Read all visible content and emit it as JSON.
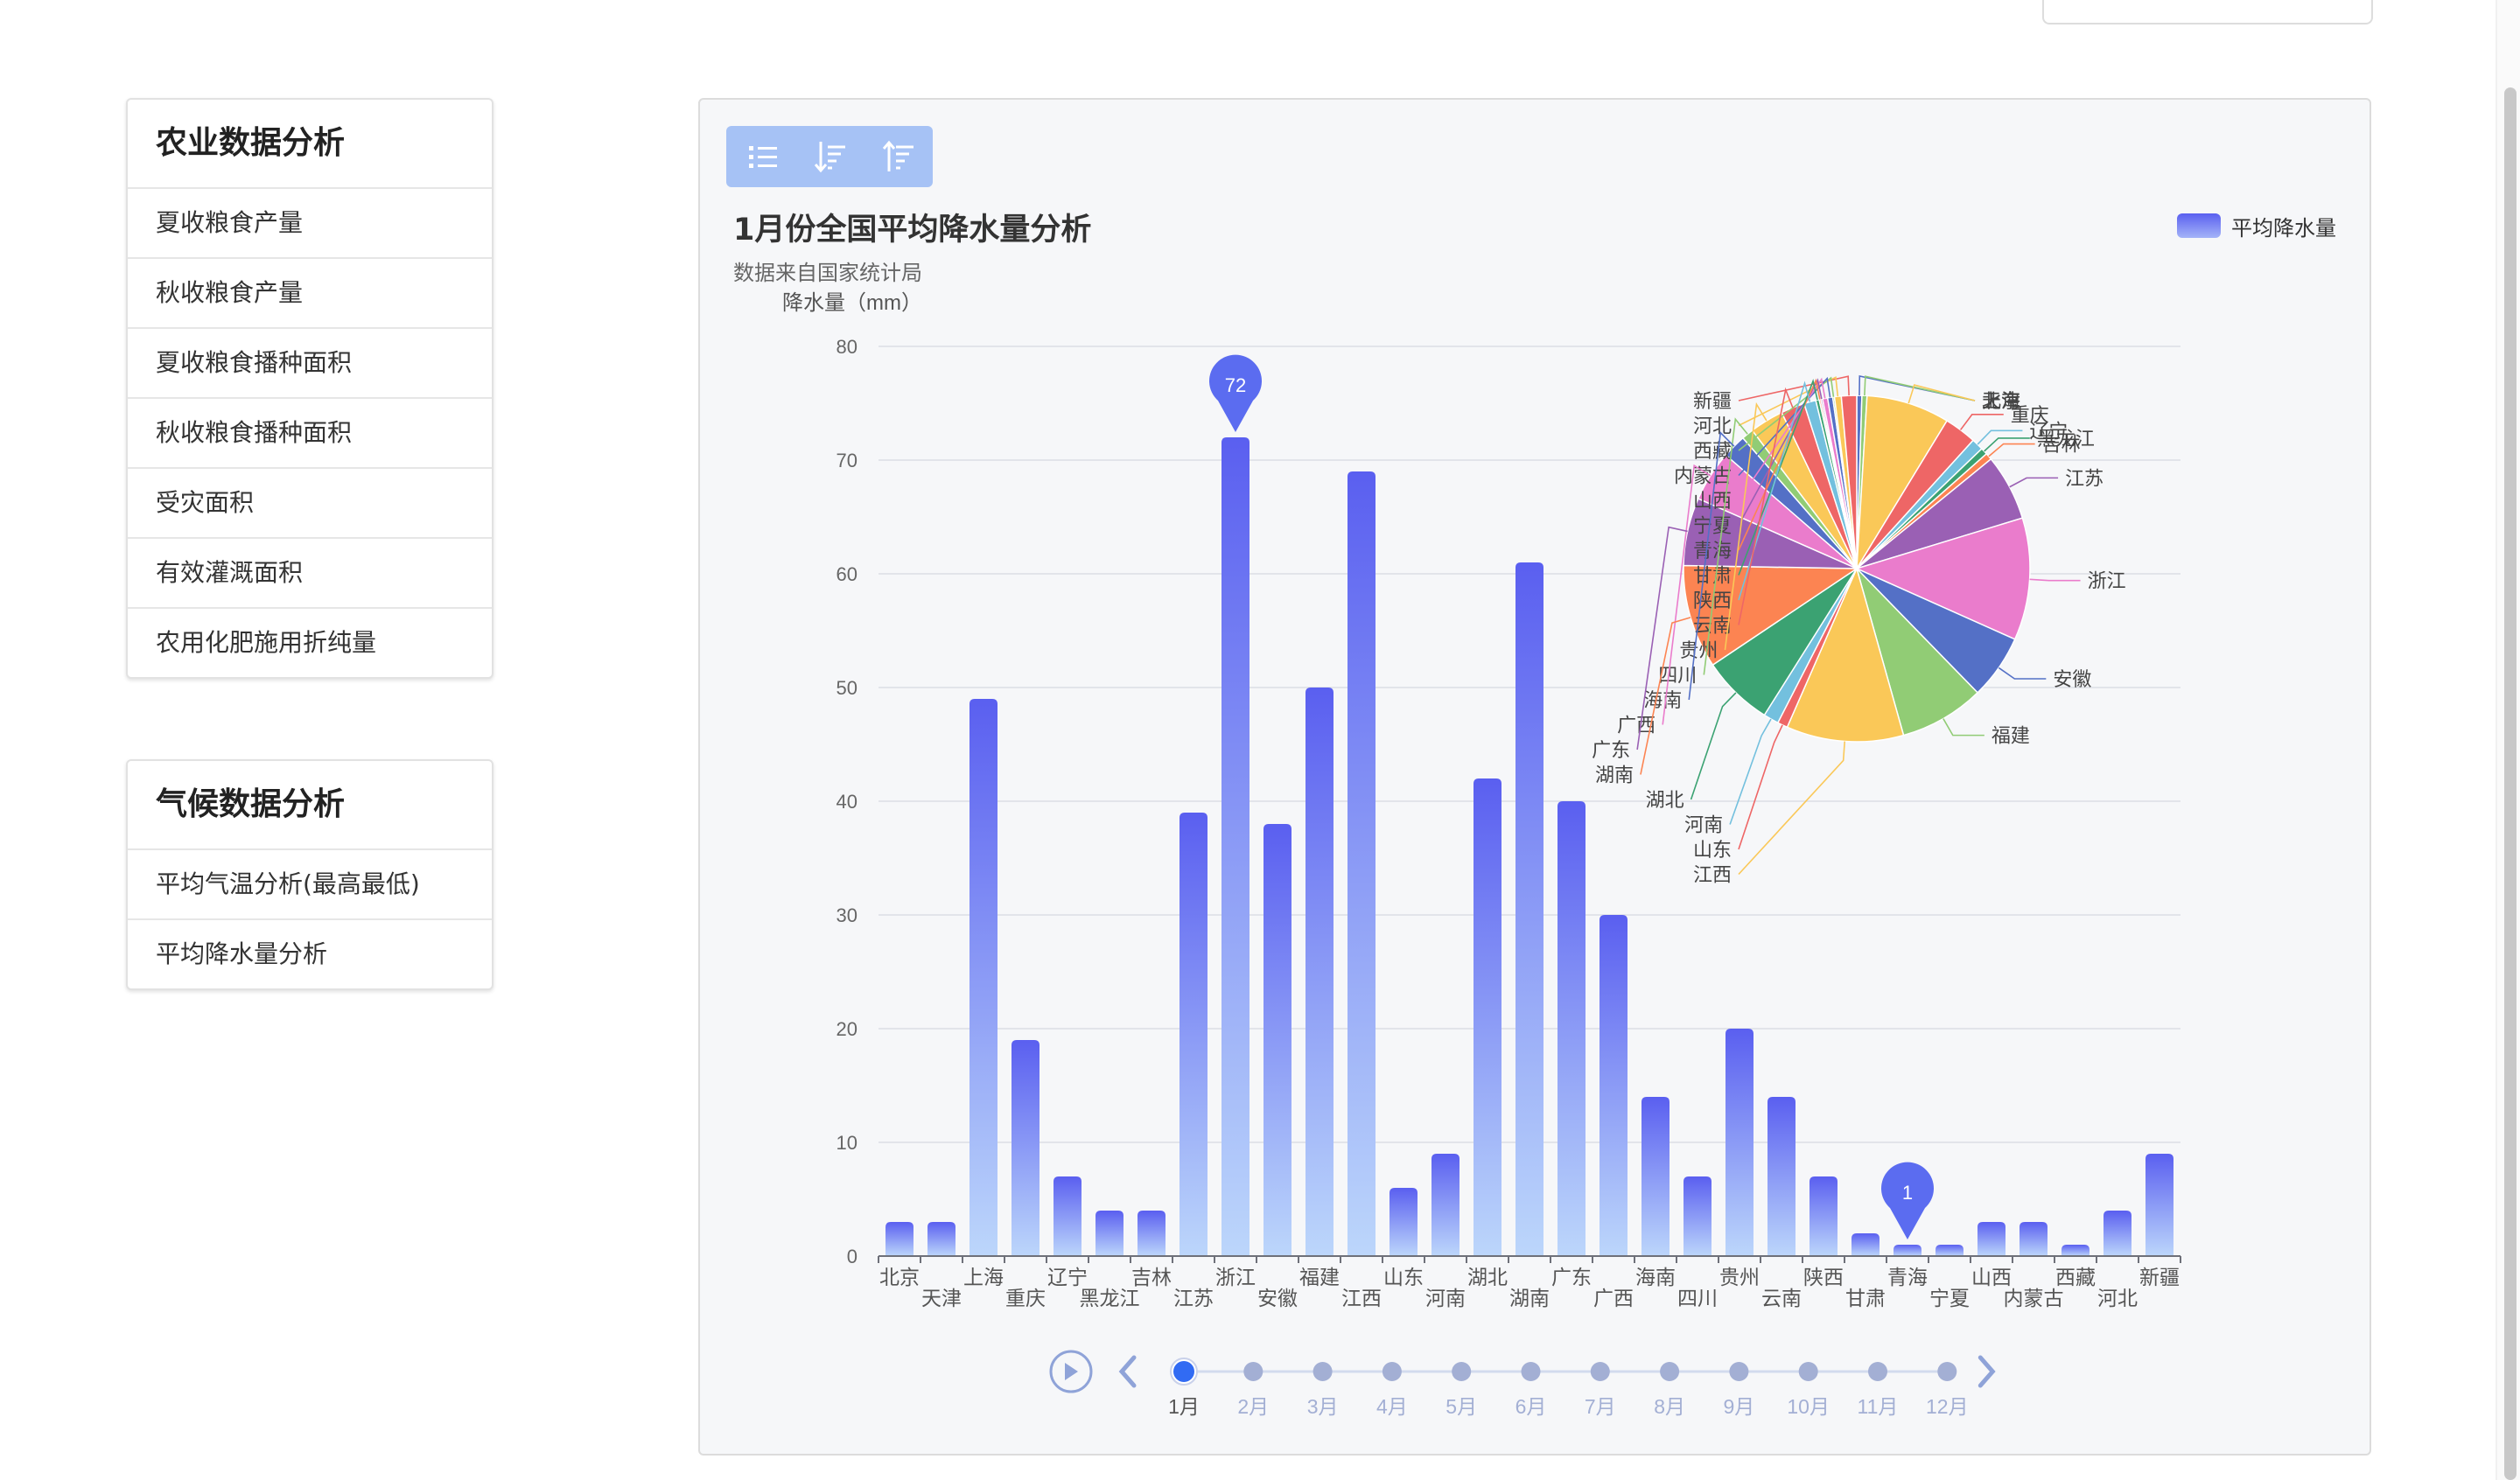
{
  "sidebar": {
    "agri": {
      "title": "农业数据分析",
      "items": [
        "夏收粮食产量",
        "秋收粮食产量",
        "夏收粮食播种面积",
        "秋收粮食播种面积",
        "受灾面积",
        "有效灌溉面积",
        "农用化肥施用折纯量"
      ]
    },
    "climate": {
      "title": "气候数据分析",
      "items": [
        "平均气温分析(最高最低)",
        "平均降水量分析"
      ]
    }
  },
  "toolbox": {
    "icons": [
      "list-icon",
      "sort-descending-icon",
      "sort-ascending-icon"
    ]
  },
  "timeline": {
    "months": [
      "1月",
      "2月",
      "3月",
      "4月",
      "5月",
      "6月",
      "7月",
      "8月",
      "9月",
      "10月",
      "11月",
      "12月"
    ],
    "current_index": 0
  },
  "chart_data": {
    "type": "bar",
    "title": "1月份全国平均降水量分析",
    "subtitle": "数据来自国家统计局",
    "ylabel": "降水量（mm）",
    "ylim": [
      0,
      80
    ],
    "yticks": [
      0,
      10,
      20,
      30,
      40,
      50,
      60,
      70,
      80
    ],
    "grid": true,
    "legend_position": "top-right",
    "categories": [
      "北京",
      "天津",
      "上海",
      "重庆",
      "辽宁",
      "黑龙江",
      "吉林",
      "江苏",
      "浙江",
      "安徽",
      "福建",
      "江西",
      "山东",
      "河南",
      "湖北",
      "湖南",
      "广东",
      "广西",
      "海南",
      "四川",
      "贵州",
      "云南",
      "陕西",
      "甘肃",
      "青海",
      "宁夏",
      "山西",
      "内蒙古",
      "西藏",
      "河北",
      "新疆"
    ],
    "series": [
      {
        "name": "平均降水量",
        "values": [
          3,
          3,
          49,
          19,
          7,
          4,
          4,
          39,
          72,
          38,
          50,
          69,
          6,
          9,
          42,
          61,
          40,
          30,
          14,
          7,
          20,
          14,
          7,
          2,
          1,
          1,
          3,
          3,
          1,
          4,
          9
        ]
      }
    ],
    "markpoints": [
      {
        "type": "max",
        "category": "浙江",
        "value": 72
      },
      {
        "type": "min",
        "category": "青海",
        "value": 1
      }
    ],
    "gradient": [
      "#5a5ff0",
      "#bcd6fb"
    ],
    "pie": {
      "type": "pie",
      "values_from": "series.0",
      "colors": [
        "#5470c6",
        "#91cc75",
        "#fac858",
        "#ee6666",
        "#73c0de",
        "#3ba272",
        "#fc8452",
        "#9a60b4",
        "#ea7ccc"
      ]
    }
  }
}
